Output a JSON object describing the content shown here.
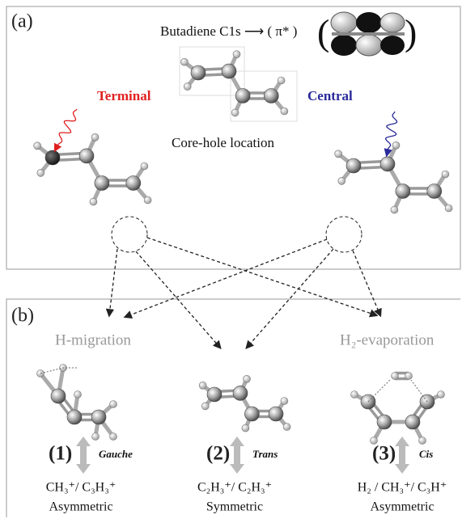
{
  "panel_a": {
    "label": "(a)",
    "title": "Butadiene C1s ⟶ ( π* )",
    "left_label": "Terminal",
    "right_label": "Central",
    "center_caption": "Core-hole location"
  },
  "panel_b": {
    "label": "(b)",
    "left_heading": "H-migration",
    "right_heading": "H₂-evaporation",
    "channels": [
      {
        "number": "(1)",
        "conformer": "Gauche",
        "fragments": "CH₃⁺/ C₃H₃⁺",
        "symmetry": "Asymmetric"
      },
      {
        "number": "(2)",
        "conformer": "Trans",
        "fragments": "C₂H₃⁺/ C₂H₃⁺",
        "symmetry": "Symmetric"
      },
      {
        "number": "(3)",
        "conformer": "Cis",
        "fragments": "H₂ / CH₃⁺/ C₃H⁺",
        "symmetry": "Asymmetric"
      }
    ]
  }
}
